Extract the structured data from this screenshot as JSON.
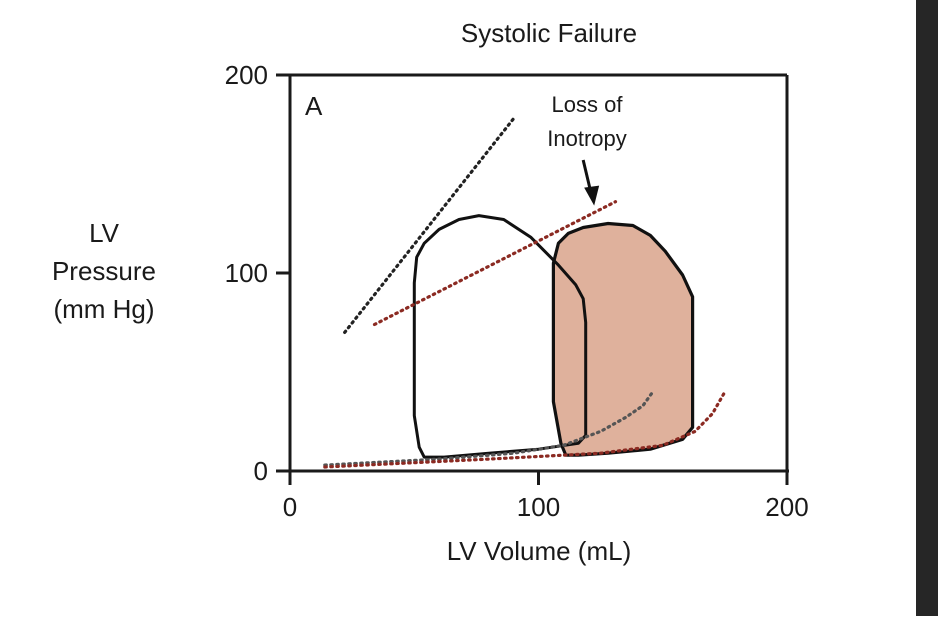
{
  "chart_data": {
    "type": "line",
    "title": "Systolic Failure",
    "panel_label": "A",
    "xlabel": "LV Volume (mL)",
    "ylabel_lines": [
      "LV",
      "Pressure",
      "(mm Hg)"
    ],
    "xlim": [
      0,
      200
    ],
    "ylim": [
      0,
      200
    ],
    "x_ticks": [
      0,
      100,
      200
    ],
    "y_ticks": [
      0,
      100,
      200
    ],
    "annotation": {
      "lines": [
        "Loss of",
        "Inotropy"
      ],
      "arrow_target": [
        122,
        133
      ]
    },
    "colors": {
      "axis": "#1a1a1a",
      "normal_loop": "#111111",
      "failure_fill": "#dfb19c",
      "failure_loop": "#111111",
      "normal_espvr": "#222222",
      "failure_espvr": "#8b2a22",
      "edpvr_normal": "#555555",
      "edpvr_failure": "#8b2a22",
      "background_strip": "#262626"
    },
    "series": [
      {
        "name": "Normal pressure-volume loop",
        "style": "solid",
        "points": [
          [
            54,
            7
          ],
          [
            52,
            12
          ],
          [
            50,
            28
          ],
          [
            50,
            60
          ],
          [
            50,
            95
          ],
          [
            51,
            108
          ],
          [
            54,
            115
          ],
          [
            60,
            122
          ],
          [
            68,
            127
          ],
          [
            76,
            129
          ],
          [
            86,
            127
          ],
          [
            97,
            118
          ],
          [
            108,
            104
          ],
          [
            115,
            94
          ],
          [
            118,
            87
          ],
          [
            119,
            75
          ],
          [
            119,
            40
          ],
          [
            119,
            18
          ],
          [
            116,
            14
          ],
          [
            100,
            11
          ],
          [
            80,
            9
          ],
          [
            62,
            7
          ]
        ]
      },
      {
        "name": "Systolic failure pressure-volume loop",
        "style": "solid-filled",
        "points": [
          [
            111,
            8
          ],
          [
            109,
            14
          ],
          [
            106,
            35
          ],
          [
            106,
            70
          ],
          [
            106,
            105
          ],
          [
            108,
            115
          ],
          [
            112,
            120
          ],
          [
            118,
            123
          ],
          [
            128,
            125
          ],
          [
            138,
            124
          ],
          [
            145,
            119
          ],
          [
            151,
            111
          ],
          [
            158,
            99
          ],
          [
            162,
            88
          ],
          [
            162,
            50
          ],
          [
            162,
            22
          ],
          [
            158,
            16
          ],
          [
            145,
            11
          ],
          [
            128,
            9
          ],
          [
            116,
            8
          ]
        ]
      },
      {
        "name": "Normal ESPVR",
        "style": "dotted",
        "points": [
          [
            22,
            70
          ],
          [
            90,
            178
          ]
        ]
      },
      {
        "name": "Reduced ESPVR (loss of inotropy)",
        "style": "dotted",
        "points": [
          [
            34,
            74
          ],
          [
            131,
            136
          ]
        ]
      },
      {
        "name": "Normal EDPVR",
        "style": "dotted",
        "points": [
          [
            14,
            3
          ],
          [
            60,
            6
          ],
          [
            90,
            9
          ],
          [
            110,
            13
          ],
          [
            125,
            20
          ],
          [
            135,
            27
          ],
          [
            142,
            33
          ],
          [
            146,
            40
          ]
        ]
      },
      {
        "name": "Shifted EDPVR",
        "style": "dotted",
        "points": [
          [
            14,
            2
          ],
          [
            80,
            6
          ],
          [
            125,
            9
          ],
          [
            150,
            13
          ],
          [
            163,
            20
          ],
          [
            170,
            29
          ],
          [
            175,
            40
          ]
        ]
      }
    ]
  }
}
